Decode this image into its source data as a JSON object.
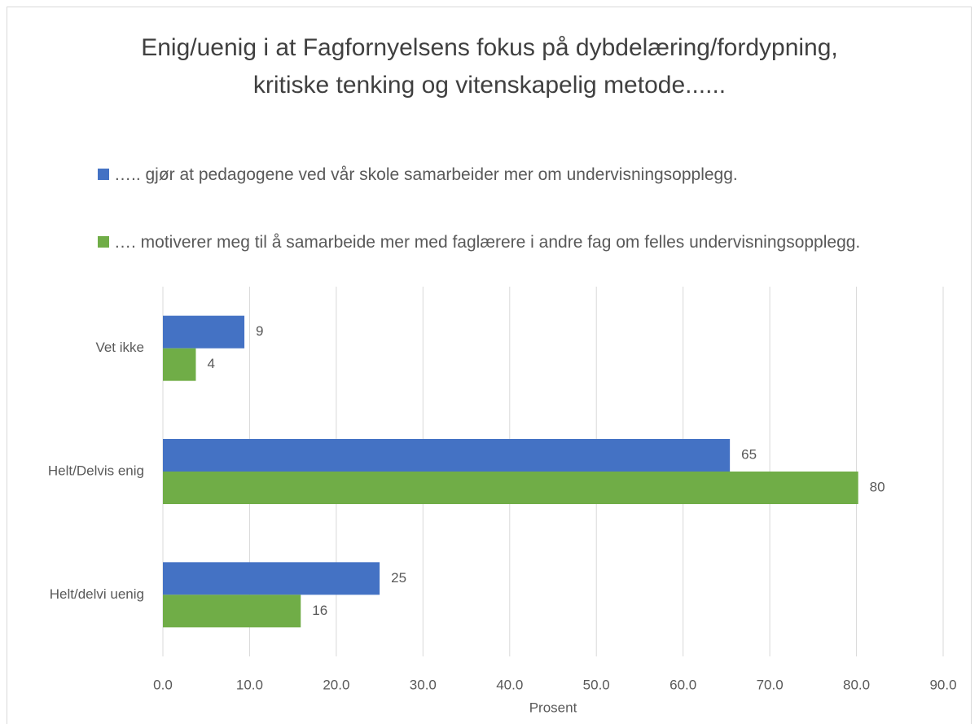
{
  "chart_data": {
    "type": "hbar",
    "title": "Enig/uenig i at Fagfornyelsens fokus på dybdelæring/fordypning, kritiske tenking og vitenskapelig metode......",
    "categories": [
      "Vet ikke",
      "Helt/Delvis enig",
      "Helt/delvi uenig"
    ],
    "series": [
      {
        "name": "….. gjør at pedagogene ved vår skole samarbeider mer om undervisningsopplegg.",
        "color": "#4472c4",
        "values": [
          9.4,
          65.4,
          25
        ],
        "value_labels": [
          "9",
          "65",
          "25"
        ]
      },
      {
        "name": "…. motiverer meg til å samarbeide mer med faglærere i andre fag om felles undervisningsopplegg.",
        "color": "#70ad47",
        "values": [
          3.8,
          80.2,
          15.9
        ],
        "value_labels": [
          "4",
          "80",
          "16"
        ]
      }
    ],
    "xlabel": "Prosent",
    "xlim": [
      0,
      90
    ],
    "xticks": [
      {
        "value": 0,
        "label": "0.0"
      },
      {
        "value": 10,
        "label": "10.0"
      },
      {
        "value": 20,
        "label": "20.0"
      },
      {
        "value": 30,
        "label": "30.0"
      },
      {
        "value": 40,
        "label": "40.0"
      },
      {
        "value": 50,
        "label": "50.0"
      },
      {
        "value": 60,
        "label": "60.0"
      },
      {
        "value": 70,
        "label": "70.0"
      },
      {
        "value": 80,
        "label": "80.0"
      },
      {
        "value": 90,
        "label": "90.0"
      }
    ],
    "grid": true,
    "legend": "top"
  }
}
